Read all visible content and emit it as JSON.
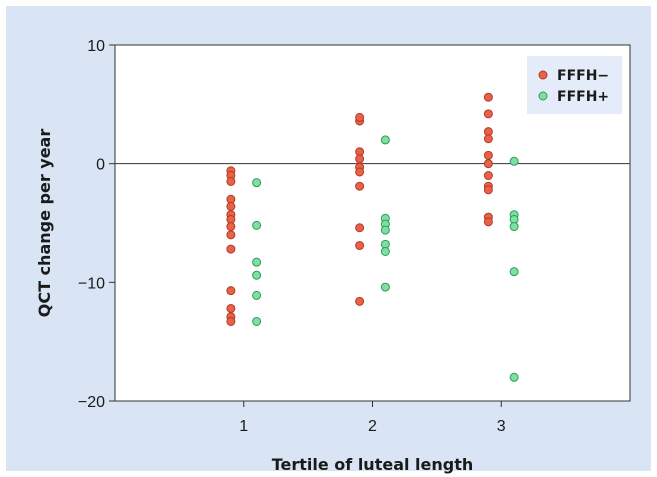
{
  "chart_data": {
    "type": "scatter",
    "title": "",
    "xlabel": "Tertile of luteal length",
    "ylabel": "QCT change per year",
    "xlim": [
      0,
      4
    ],
    "ylim": [
      -20,
      10
    ],
    "x_ticks": [
      "1",
      "2",
      "3"
    ],
    "y_ticks": [
      10,
      0,
      -10,
      -20
    ],
    "y_tick_labels": [
      "10",
      "0",
      "−10",
      "−20"
    ],
    "zero_line": true,
    "legend_position": "top-right",
    "series": [
      {
        "name": "FFFH−",
        "color": "#e8624a",
        "stroke": "#b23a24",
        "x_offset": -0.1,
        "points": {
          "1": [
            -0.6,
            -1.0,
            -1.5,
            -3.0,
            -3.6,
            -4.3,
            -4.7,
            -5.3,
            -6.0,
            -7.2,
            -10.7,
            -12.2,
            -12.9,
            -13.3
          ],
          "2": [
            3.6,
            3.9,
            1.0,
            0.4,
            -0.3,
            -0.7,
            -1.9,
            -5.4,
            -6.9,
            -11.6
          ],
          "3": [
            5.6,
            4.2,
            2.7,
            2.1,
            0.7,
            0.0,
            -1.0,
            -1.9,
            -2.2,
            -4.5,
            -4.9
          ]
        }
      },
      {
        "name": "FFFH+",
        "color": "#7ee0a0",
        "stroke": "#2e9a5c",
        "x_offset": 0.1,
        "points": {
          "1": [
            -1.6,
            -5.2,
            -8.3,
            -9.4,
            -11.1,
            -13.3
          ],
          "2": [
            2.0,
            -4.6,
            -5.1,
            -5.6,
            -6.8,
            -7.4,
            -10.4
          ],
          "3": [
            0.2,
            -4.3,
            -4.7,
            -5.3,
            -9.1,
            -18.0
          ]
        }
      }
    ]
  },
  "colors": {
    "background": "#d9e5f5",
    "plot_area": "#ffffff",
    "legend_box": "#e3ecf8",
    "axis": "#333333"
  }
}
